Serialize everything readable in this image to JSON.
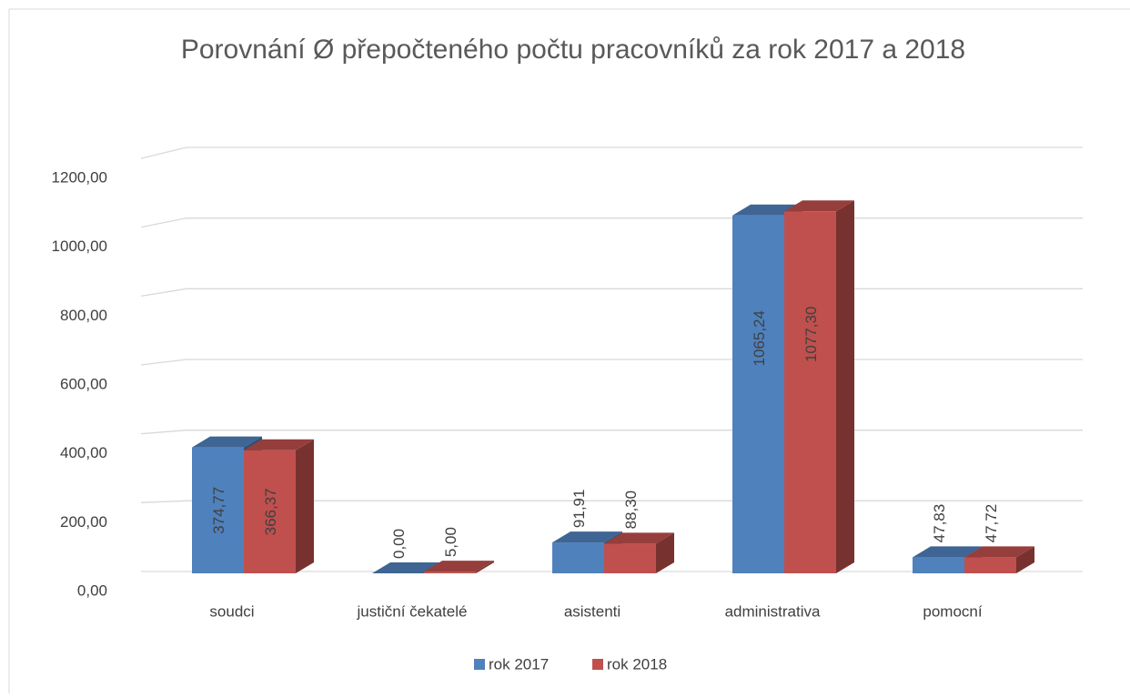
{
  "chart_data": {
    "type": "bar3d",
    "title": "Porovnání Ø přepočteného počtu pracovníků za rok 2017 a 2018",
    "categories": [
      "soudci",
      "justiční čekatelé",
      "asistenti",
      "administrativa",
      "pomocní"
    ],
    "series": [
      {
        "name": "rok 2017",
        "color": "#4f81bd",
        "values": [
          374.77,
          0,
          91.91,
          1065.24,
          47.83
        ],
        "value_labels": [
          "374,77",
          "0,00",
          "91,91",
          "1065,24",
          "47,83"
        ]
      },
      {
        "name": "rok 2018",
        "color": "#c0504d",
        "values": [
          366.37,
          5,
          88.3,
          1077.3,
          47.72
        ],
        "value_labels": [
          "366,37",
          "5,00",
          "88,30",
          "1077,30",
          "47,72"
        ]
      }
    ],
    "ylim": [
      0,
      1200
    ],
    "yticks": [
      {
        "value": 0,
        "label": "0,00"
      },
      {
        "value": 200,
        "label": "200,00"
      },
      {
        "value": 400,
        "label": "400,00"
      },
      {
        "value": 600,
        "label": "600,00"
      },
      {
        "value": 800,
        "label": "800,00"
      },
      {
        "value": 1000,
        "label": "1000,00"
      },
      {
        "value": 1200,
        "label": "1200,00"
      }
    ],
    "grid": true,
    "legend": "bottom"
  }
}
